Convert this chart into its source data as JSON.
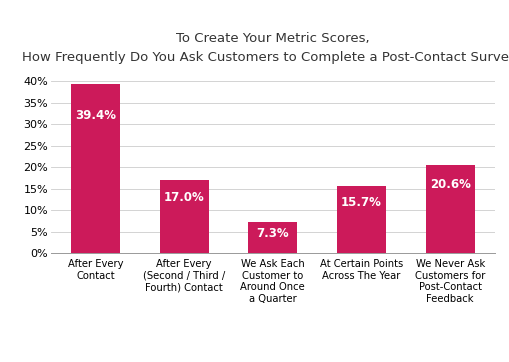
{
  "title_line1": "To Create Your Metric Scores,",
  "title_line2": "How Frequently Do You Ask Customers to Complete a Post-Contact Survey?",
  "categories": [
    "After Every\nContact",
    "After Every\n(Second / Third /\nFourth) Contact",
    "We Ask Each\nCustomer to\nAround Once\na Quarter",
    "At Certain Points\nAcross The Year",
    "We Never Ask\nCustomers for\nPost-Contact\nFeedback"
  ],
  "values": [
    39.4,
    17.0,
    7.3,
    15.7,
    20.6
  ],
  "bar_color": "#CC1A5A",
  "label_color": "#ffffff",
  "background_color": "#ffffff",
  "ylim": [
    0,
    42
  ],
  "yticks": [
    0,
    5,
    10,
    15,
    20,
    25,
    30,
    35,
    40
  ],
  "title_fontsize": 9.5,
  "label_fontsize": 8.5,
  "tick_fontsize": 8,
  "cat_fontsize": 7.2,
  "bar_width": 0.55
}
